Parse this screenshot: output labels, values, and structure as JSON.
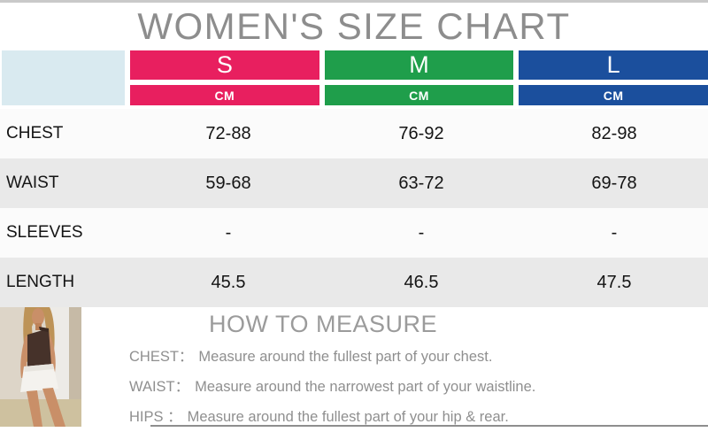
{
  "title": "WOMEN'S SIZE CHART",
  "size_chart": {
    "unit_label": "CM",
    "columns": [
      {
        "label": "S",
        "color": "#e81f5f"
      },
      {
        "label": "M",
        "color": "#1f9e4b"
      },
      {
        "label": "L",
        "color": "#1b4f9d"
      }
    ],
    "corner_bg": "#d9eaf0",
    "rows": [
      {
        "label": "CHEST",
        "values": [
          "72-88",
          "76-92",
          "82-98"
        ]
      },
      {
        "label": "WAIST",
        "values": [
          "59-68",
          "63-72",
          "69-78"
        ]
      },
      {
        "label": "SLEEVES",
        "values": [
          "-",
          "-",
          "-"
        ]
      },
      {
        "label": "LENGTH",
        "values": [
          "45.5",
          "46.5",
          "47.5"
        ]
      }
    ]
  },
  "how_to_measure": {
    "title": "HOW TO MEASURE",
    "lines": [
      {
        "label": "CHEST：",
        "text": "Measure around the fullest part of your chest."
      },
      {
        "label": "WAIST：",
        "text": "Measure around the narrowest part of your waistline."
      },
      {
        "label": "HIPS ：",
        "text": "Measure around the fullest part of your hip & rear."
      }
    ]
  },
  "photo": {
    "description": "model wearing brown one-shoulder top and white mini skirt"
  },
  "chart_data": {
    "type": "table",
    "title": "WOMEN'S SIZE CHART",
    "unit": "CM",
    "columns": [
      "S",
      "M",
      "L"
    ],
    "rows": [
      {
        "measure": "CHEST",
        "S": "72-88",
        "M": "76-92",
        "L": "82-98"
      },
      {
        "measure": "WAIST",
        "S": "59-68",
        "M": "63-72",
        "L": "69-78"
      },
      {
        "measure": "SLEEVES",
        "S": "-",
        "M": "-",
        "L": "-"
      },
      {
        "measure": "LENGTH",
        "S": "45.5",
        "M": "46.5",
        "L": "47.5"
      }
    ]
  }
}
